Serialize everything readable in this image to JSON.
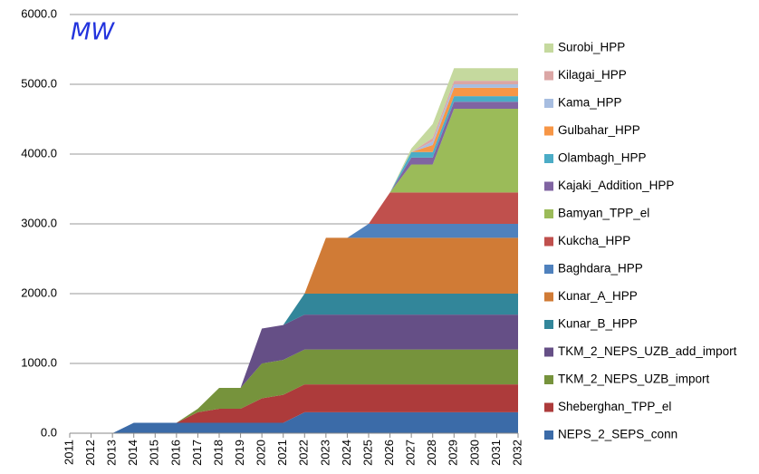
{
  "chart_data": {
    "type": "stacked_area",
    "annotation": "MW",
    "categories": [
      "2011",
      "2012",
      "2013",
      "2014",
      "2015",
      "2016",
      "2017",
      "2018",
      "2019",
      "2020",
      "2021",
      "2022",
      "2023",
      "2024",
      "2025",
      "2026",
      "2027",
      "2028",
      "2029",
      "2030",
      "2031",
      "2032"
    ],
    "ylim": [
      0,
      6000
    ],
    "yticks": [
      {
        "value": 0,
        "label": "0.0"
      },
      {
        "value": 1000,
        "label": "1000.0"
      },
      {
        "value": 2000,
        "label": "2000.0"
      },
      {
        "value": 3000,
        "label": "3000.0"
      },
      {
        "value": 4000,
        "label": "4000.0"
      },
      {
        "value": 5000,
        "label": "5000.0"
      },
      {
        "value": 6000,
        "label": "6000.0"
      }
    ],
    "grid": true,
    "legend": "right",
    "series": [
      {
        "name": "NEPS_2_SEPS_conn",
        "color": "#3b6ba8",
        "values": [
          0,
          0,
          0,
          150,
          150,
          150,
          150,
          150,
          150,
          150,
          150,
          300,
          300,
          300,
          300,
          300,
          300,
          300,
          300,
          300,
          300,
          300
        ]
      },
      {
        "name": "Sheberghan_TPP_el",
        "color": "#ad3b3b",
        "values": [
          0,
          0,
          0,
          0,
          0,
          0,
          150,
          200,
          200,
          350,
          400,
          400,
          400,
          400,
          400,
          400,
          400,
          400,
          400,
          400,
          400,
          400
        ]
      },
      {
        "name": "TKM_2_NEPS_UZB_import",
        "color": "#76933c",
        "values": [
          0,
          0,
          0,
          0,
          0,
          0,
          50,
          300,
          300,
          500,
          500,
          500,
          500,
          500,
          500,
          500,
          500,
          500,
          500,
          500,
          500,
          500
        ]
      },
      {
        "name": "TKM_2_NEPS_UZB_add_import",
        "color": "#654f86",
        "values": [
          0,
          0,
          0,
          0,
          0,
          0,
          0,
          0,
          0,
          500,
          500,
          500,
          500,
          500,
          500,
          500,
          500,
          500,
          500,
          500,
          500,
          500
        ]
      },
      {
        "name": "Kunar_B_HPP",
        "color": "#32869a",
        "values": [
          0,
          0,
          0,
          0,
          0,
          0,
          0,
          0,
          0,
          0,
          0,
          300,
          300,
          300,
          300,
          300,
          300,
          300,
          300,
          300,
          300,
          300
        ]
      },
      {
        "name": "Kunar_A_HPP",
        "color": "#d07b36",
        "values": [
          0,
          0,
          0,
          0,
          0,
          0,
          0,
          0,
          0,
          0,
          0,
          0,
          800,
          800,
          800,
          800,
          800,
          800,
          800,
          800,
          800,
          800
        ]
      },
      {
        "name": "Baghdara_HPP",
        "color": "#4f81bd",
        "values": [
          0,
          0,
          0,
          0,
          0,
          0,
          0,
          0,
          0,
          0,
          0,
          0,
          0,
          0,
          200,
          200,
          200,
          200,
          200,
          200,
          200,
          200
        ]
      },
      {
        "name": "Kukcha_HPP",
        "color": "#c0504d",
        "values": [
          0,
          0,
          0,
          0,
          0,
          0,
          0,
          0,
          0,
          0,
          0,
          0,
          0,
          0,
          0,
          450,
          450,
          450,
          450,
          450,
          450,
          450
        ]
      },
      {
        "name": "Bamyan_TPP_el",
        "color": "#9bbb59",
        "values": [
          0,
          0,
          0,
          0,
          0,
          0,
          0,
          0,
          0,
          0,
          0,
          0,
          0,
          0,
          0,
          0,
          400,
          400,
          1200,
          1200,
          1200,
          1200
        ]
      },
      {
        "name": "Kajaki_Addition_HPP",
        "color": "#8064a2",
        "values": [
          0,
          0,
          0,
          0,
          0,
          0,
          0,
          0,
          0,
          0,
          0,
          0,
          0,
          0,
          0,
          0,
          100,
          100,
          100,
          100,
          100,
          100
        ]
      },
      {
        "name": "Olambagh_HPP",
        "color": "#4bacc6",
        "values": [
          0,
          0,
          0,
          0,
          0,
          0,
          0,
          0,
          0,
          0,
          0,
          0,
          0,
          0,
          0,
          0,
          80,
          80,
          80,
          80,
          80,
          80
        ]
      },
      {
        "name": "Gulbahar_HPP",
        "color": "#f79646",
        "values": [
          0,
          0,
          0,
          0,
          0,
          0,
          0,
          0,
          0,
          0,
          0,
          0,
          0,
          0,
          0,
          0,
          0,
          100,
          120,
          120,
          120,
          120
        ]
      },
      {
        "name": "Kama_HPP",
        "color": "#a7bde0",
        "values": [
          0,
          0,
          0,
          0,
          0,
          0,
          0,
          0,
          0,
          0,
          0,
          0,
          0,
          0,
          0,
          0,
          0,
          50,
          50,
          50,
          50,
          50
        ]
      },
      {
        "name": "Kilagai_HPP",
        "color": "#dba6a5",
        "values": [
          0,
          0,
          0,
          0,
          0,
          0,
          0,
          0,
          0,
          0,
          0,
          0,
          0,
          0,
          0,
          0,
          0,
          50,
          50,
          50,
          50,
          50
        ]
      },
      {
        "name": "Surobi_HPP",
        "color": "#c5d99e",
        "values": [
          0,
          0,
          0,
          0,
          0,
          0,
          0,
          0,
          0,
          0,
          0,
          0,
          0,
          0,
          0,
          0,
          50,
          200,
          180,
          180,
          180,
          180
        ]
      }
    ]
  }
}
